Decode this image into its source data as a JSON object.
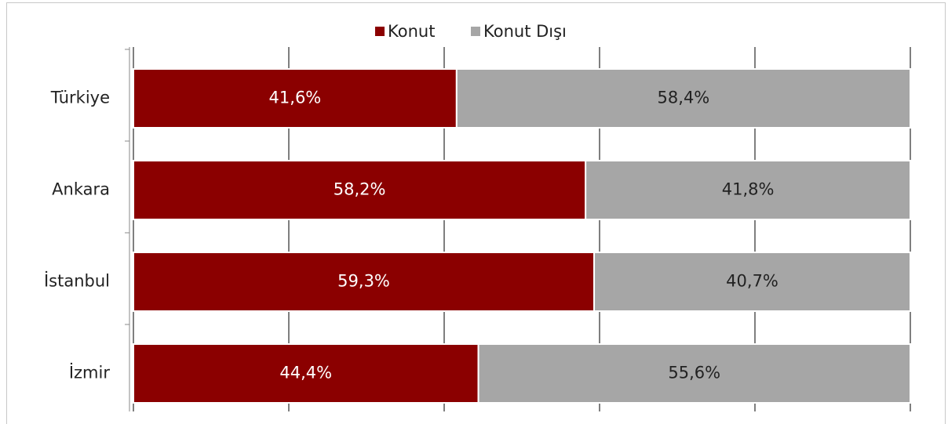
{
  "chart_data": {
    "type": "stacked_barh",
    "categories": [
      "Türkiye",
      "Ankara",
      "İstanbul",
      "İzmir"
    ],
    "series": [
      {
        "name": "Konut",
        "color": "#8b0000",
        "values": [
          41.6,
          58.2,
          59.3,
          44.4
        ],
        "value_labels": [
          "41,6%",
          "58,2%",
          "59,3%",
          "44,4%"
        ]
      },
      {
        "name": "Konut Dışı",
        "color": "#a6a6a6",
        "values": [
          58.4,
          41.8,
          40.7,
          55.6
        ],
        "value_labels": [
          "58,4%",
          "41,8%",
          "40,7%",
          "55,6%"
        ]
      }
    ],
    "xlim": [
      0,
      100
    ],
    "xticks": [
      0,
      20,
      40,
      60,
      80,
      100
    ],
    "grid": true,
    "legend": "top"
  }
}
